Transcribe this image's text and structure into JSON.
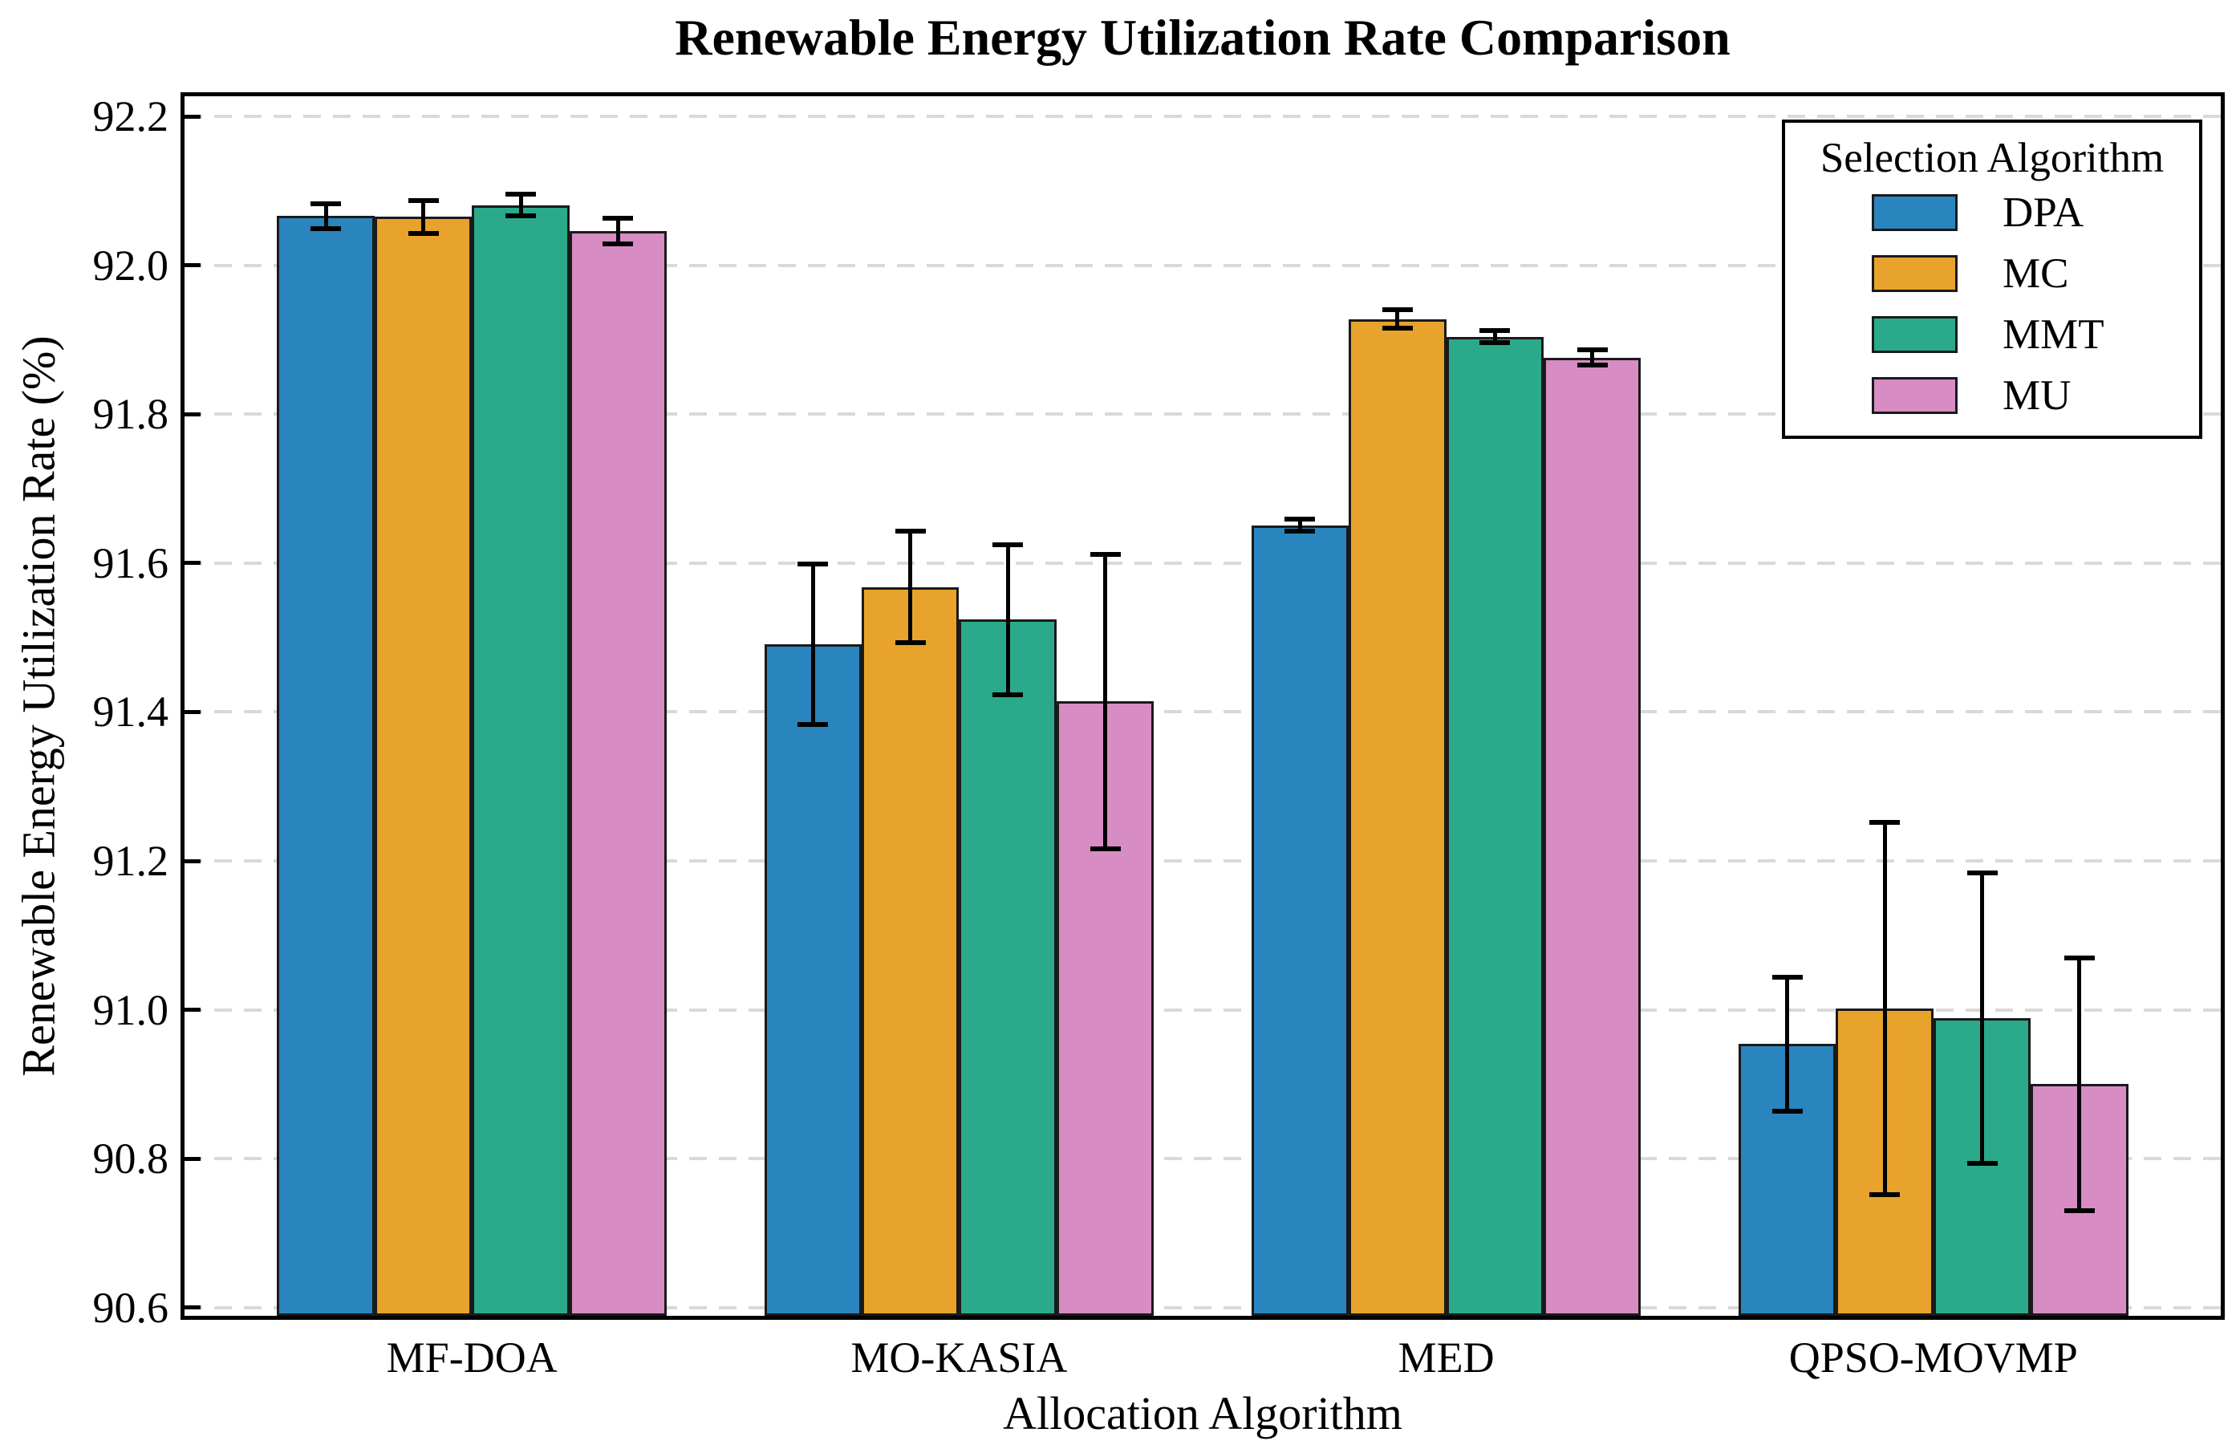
{
  "title": "Renewable Energy Utilization Rate Comparison",
  "x_axis": {
    "label": "Allocation Algorithm",
    "categories": [
      "MF-DOA",
      "MO-KASIA",
      "MED",
      "QPSO-MOVMP"
    ]
  },
  "y_axis": {
    "label": "Renewable Energy Utilization Rate (%)",
    "tick_labels": [
      "90.6",
      "90.8",
      "91.0",
      "91.2",
      "91.4",
      "91.6",
      "91.8",
      "92.0",
      "92.2"
    ]
  },
  "legend": {
    "title": "Selection Algorithm",
    "entries": [
      "DPA",
      "MC",
      "MMT",
      "MU"
    ]
  },
  "colors": {
    "DPA": "#2a84bd",
    "MC": "#e8a32c",
    "MMT": "#2aaa8a",
    "MU": "#d78cc3",
    "bar_edge": "#1a1a1a",
    "grid": "#d9d9d9",
    "error_bar": "#000000",
    "text": "#000000",
    "background": "#ffffff"
  },
  "chart_data": {
    "type": "bar",
    "title": "Renewable Energy Utilization Rate Comparison",
    "xlabel": "Allocation Algorithm",
    "ylabel": "Renewable Energy Utilization Rate (%)",
    "categories": [
      "MF-DOA",
      "MO-KASIA",
      "MED",
      "QPSO-MOVMP"
    ],
    "series": [
      {
        "name": "DPA",
        "color": "#2a84bd",
        "values": [
          92.066,
          91.491,
          91.651,
          90.954
        ],
        "errors": [
          0.017,
          0.108,
          0.008,
          0.09
        ]
      },
      {
        "name": "MC",
        "color": "#e8a32c",
        "values": [
          92.065,
          91.568,
          91.928,
          91.002
        ],
        "errors": [
          0.022,
          0.075,
          0.012,
          0.25
        ]
      },
      {
        "name": "MMT",
        "color": "#2aaa8a",
        "values": [
          92.081,
          91.524,
          91.904,
          90.989
        ],
        "errors": [
          0.015,
          0.101,
          0.008,
          0.195
        ]
      },
      {
        "name": "MU",
        "color": "#d78cc3",
        "values": [
          92.046,
          91.414,
          91.876,
          90.9
        ],
        "errors": [
          0.017,
          0.198,
          0.01,
          0.17
        ]
      }
    ],
    "ylim": [
      90.589,
      92.227
    ],
    "yticks": [
      90.6,
      90.8,
      91.0,
      91.2,
      91.4,
      91.6,
      91.8,
      92.0,
      92.2
    ],
    "grid": "horizontal-dashed",
    "error_bars": true,
    "legend_title": "Selection Algorithm",
    "legend_position": "upper-right"
  }
}
